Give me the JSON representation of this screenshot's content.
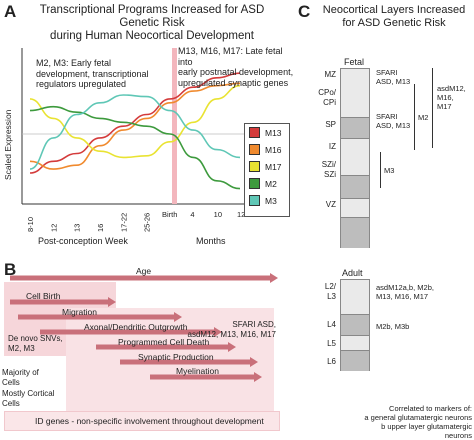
{
  "panel_a": {
    "letter": "A",
    "title_line1": "Transcriptional Programs Increased for ASD Genetic Risk",
    "title_line2": "during Human Neocortical Development",
    "note_left": [
      "M2, M3: Early fetal",
      "development, transcriptional",
      "regulators upregulated"
    ],
    "note_right": [
      "M13, M16, M17: Late fetal into",
      "early postnatal development,",
      "upregulated synaptic genes"
    ],
    "ylabel": "Scaled Expression",
    "xlabel_left": "Post-conception Week",
    "xlabel_right": "Months",
    "birth_label": "Birth",
    "legend": [
      {
        "name": "M13",
        "color": "#d43b3b"
      },
      {
        "name": "M16",
        "color": "#f08a2e"
      },
      {
        "name": "M17",
        "color": "#e9e332"
      },
      {
        "name": "M2",
        "color": "#3d9a3d"
      },
      {
        "name": "M3",
        "color": "#5fc7b6"
      }
    ]
  },
  "chart_data": {
    "type": "line",
    "x": [
      "8-10",
      "12",
      "13",
      "16",
      "17-22",
      "25-26",
      "Birth",
      "4",
      "10",
      "12"
    ],
    "xlabel": "Post-conception Week",
    "ylabel": "Scaled Expression",
    "series": [
      {
        "name": "M13",
        "color": "#d43b3b",
        "values": [
          -0.5,
          -0.35,
          -0.25,
          -0.05,
          0.1,
          0.25,
          0.45,
          0.6,
          0.72,
          0.78
        ]
      },
      {
        "name": "M16",
        "color": "#f08a2e",
        "values": [
          -0.35,
          -0.45,
          -0.4,
          -0.15,
          0.05,
          0.2,
          0.4,
          0.55,
          0.62,
          0.65
        ]
      },
      {
        "name": "M17",
        "color": "#e9e332",
        "values": [
          0.45,
          0.2,
          -0.05,
          -0.22,
          -0.3,
          -0.28,
          -0.1,
          0.15,
          0.45,
          0.62
        ]
      },
      {
        "name": "M2",
        "color": "#3d9a3d",
        "values": [
          0.3,
          0.35,
          0.28,
          0.2,
          0.15,
          0.1,
          0.0,
          -0.3,
          -0.6,
          -0.7
        ]
      },
      {
        "name": "M3",
        "color": "#5fc7b6",
        "values": [
          -0.45,
          -0.05,
          0.25,
          0.4,
          0.5,
          0.48,
          0.3,
          0.05,
          -0.2,
          -0.3
        ]
      }
    ]
  },
  "panel_b": {
    "letter": "B",
    "bars": [
      {
        "label": "Age",
        "color": "#c9707a"
      },
      {
        "label": "Cell Birth",
        "color": "#c9707a"
      },
      {
        "label": "Migration",
        "color": "#c9707a"
      },
      {
        "label": "Axonal/Dendritic Outgrowth",
        "color": "#c9707a"
      },
      {
        "label": "Programmed Cell Death",
        "color": "#c9707a"
      },
      {
        "label": "Synaptic Production",
        "color": "#c9707a"
      },
      {
        "label": "Myelination",
        "color": "#c9707a"
      }
    ],
    "box_left_label": [
      "De novo SNVs,",
      "M2, M3"
    ],
    "box_right_label": [
      "SFARI ASD,",
      "asdM12, M13, M16, M17"
    ],
    "majority_label": [
      "Majority of",
      "Cells"
    ],
    "cortical_label": [
      "Mostly Cortical",
      "Cells"
    ],
    "id_genes_label": "ID genes - non-specific involvement throughout development"
  },
  "panel_c": {
    "letter": "C",
    "title_line1": "Neocortical Layers Increased",
    "title_line2": "for ASD Genetic Risk",
    "fetal_label": "Fetal",
    "fetal_layers": [
      "MZ",
      "CPo/\nCPi",
      "SP",
      "IZ",
      "SZi/\nSZi",
      "VZ"
    ],
    "fetal_annot_1": [
      "SFARI",
      "ASD, M13"
    ],
    "fetal_annot_2": [
      "SFARI",
      "ASD, M13"
    ],
    "fetal_bracket_m2": "M2",
    "fetal_bracket_m3": "M3",
    "fetal_right": [
      "asdM12,",
      "M16,",
      "M17"
    ],
    "adult_label": "Adult",
    "adult_layers": [
      "L2/\nL3",
      "L4",
      "L5",
      "L6"
    ],
    "adult_annot_1": [
      "asdM12a,b, M2b,",
      "M13, M16, M17"
    ],
    "adult_annot_2": "M2b, M3b",
    "footnote": [
      "Correlated to markers of:",
      "a general glutamatergic neurons",
      "b upper layer glutamatergic neurons"
    ]
  }
}
